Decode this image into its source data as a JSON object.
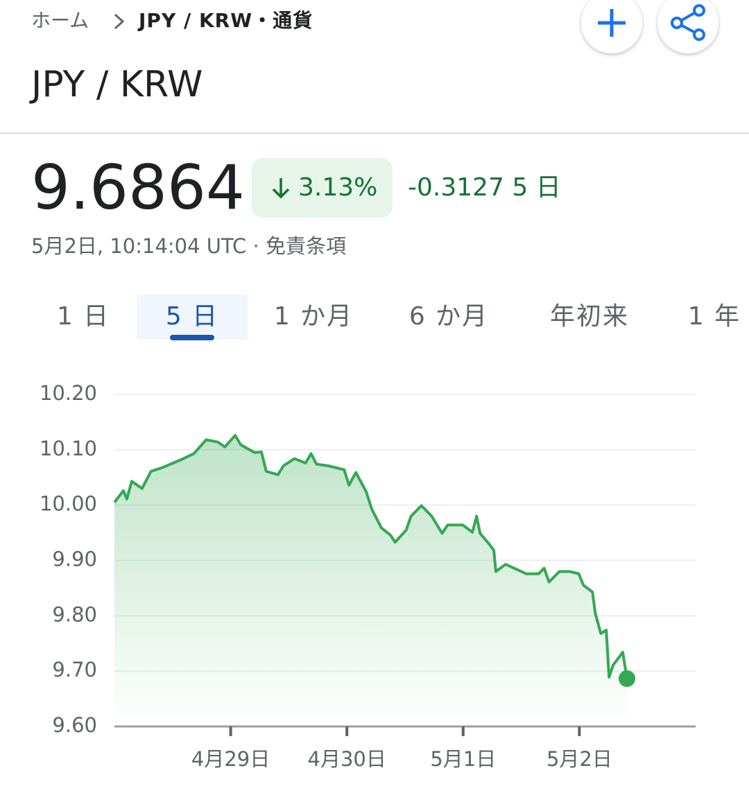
{
  "header": {
    "breadcrumb": [
      "ホーム",
      "JPY / KRW・通貨"
    ],
    "title": "JPY / KRW"
  },
  "quote": {
    "price": "9.6864",
    "change_percent": "3.13%",
    "change": "-0.3127 5 日",
    "timestamp": "5月2日, 10:14:04 UTC · 免責条項"
  },
  "tabs": {
    "items": [
      "1 日",
      "5 日",
      "1 か月",
      "6 か月",
      "年初来",
      "1 年"
    ],
    "selected": 1
  },
  "chart_data": {
    "type": "line",
    "color": "#34a853",
    "x": [
      0,
      1.85,
      2.56,
      3.56,
      5.7,
      7.55,
      9.97,
      12.11,
      14.25,
      16.38,
      18.94,
      21.36,
      22.79,
      24.93,
      26.07,
      28.91,
      30.34,
      31.34,
      33.76,
      34.9,
      37.18,
      39.45,
      40.59,
      41.73,
      44.15,
      47.43,
      48.43,
      49.85,
      51.99,
      53.13,
      55.12,
      56.97,
      57.97,
      60.25,
      61.25,
      63.38,
      65.52,
      67.66,
      68.8,
      71.93,
      73.92,
      74.78,
      75.49,
      77.34,
      78.34,
      78.76,
      80.76,
      83.04,
      85.03,
      87.6,
      88.73,
      89.73,
      91.87,
      94.0,
      95.86,
      96.86,
      98.71,
      99.28,
      100.42,
      101.56,
      102.13,
      102.98,
      104.97,
      105.83
    ],
    "values": [
      10.005,
      10.026,
      10.011,
      10.043,
      10.03,
      10.061,
      10.068,
      10.076,
      10.084,
      10.093,
      10.118,
      10.114,
      10.105,
      10.126,
      10.109,
      10.095,
      10.096,
      10.061,
      10.055,
      10.071,
      10.084,
      10.076,
      10.093,
      10.074,
      10.071,
      10.064,
      10.036,
      10.059,
      10.024,
      9.993,
      9.959,
      9.946,
      9.933,
      9.955,
      9.98,
      9.999,
      9.98,
      9.949,
      9.964,
      9.964,
      9.951,
      9.98,
      9.949,
      9.93,
      9.918,
      9.88,
      9.893,
      9.884,
      9.876,
      9.876,
      9.886,
      9.861,
      9.88,
      9.88,
      9.876,
      9.855,
      9.843,
      9.805,
      9.768,
      9.774,
      9.689,
      9.711,
      9.734,
      9.6864
    ],
    "xlim": [
      0,
      120
    ],
    "xticks": [
      {
        "value": 24,
        "label": "4月29日"
      },
      {
        "value": 48,
        "label": "4月30日"
      },
      {
        "value": 72,
        "label": "5月1日"
      },
      {
        "value": 96,
        "label": "5月2日"
      }
    ],
    "ylim": [
      9.6,
      10.2
    ],
    "yticks": [
      {
        "value": 9.6,
        "label": "9.60"
      },
      {
        "value": 9.7,
        "label": "9.70"
      },
      {
        "value": 9.8,
        "label": "9.80"
      },
      {
        "value": 9.9,
        "label": "9.90"
      },
      {
        "value": 10.0,
        "label": "10.00"
      },
      {
        "value": 10.1,
        "label": "10.10"
      },
      {
        "value": 10.2,
        "label": "10.20"
      }
    ],
    "grid": true
  }
}
